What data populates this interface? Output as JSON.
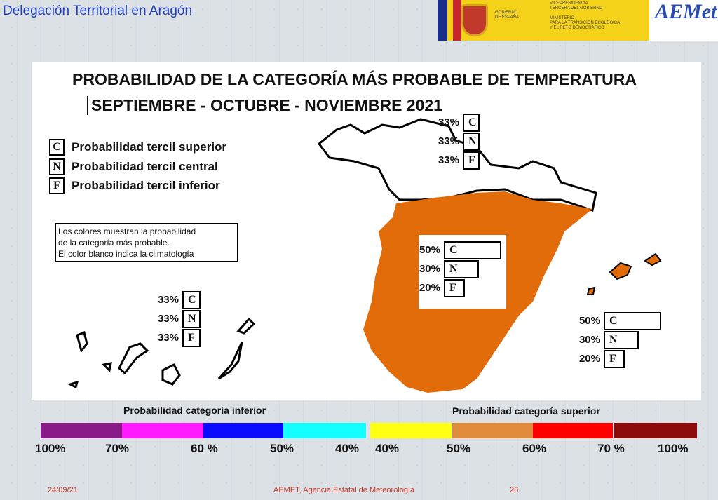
{
  "header": {
    "title": "Delegación Territorial en Aragón",
    "gov1": "GOBIERNO",
    "gov2": "DE ESPAÑA",
    "min1": "VICEPRESIDENCIA",
    "min2": "TERCERA DEL GOBIERNO",
    "min3": "MINISTERIO",
    "min4": "PARA LA TRANSICIÓN ECOLÓGICA",
    "min5": "Y EL RETO DEMOGRÁFICO",
    "logo": "AEMet"
  },
  "slide": {
    "title": "PROBABILIDAD DE LA CATEGORÍA MÁS PROBABLE DE TEMPERATURA",
    "subtitle": "SEPTIEMBRE - OCTUBRE - NOVIEMBRE 2021"
  },
  "legend": [
    {
      "key": "C",
      "label": "Probabilidad  tercil superior"
    },
    {
      "key": "N",
      "label": "Probabilidad  tercil central"
    },
    {
      "key": "F",
      "label": "Probabilidad  tercil inferior"
    }
  ],
  "note": [
    "Los colores muestran la probabilidad",
    "de la categoría más probable.",
    "El color blanco indica la climatología"
  ],
  "groups": {
    "north": [
      {
        "p": "33%",
        "k": "C",
        "v": 33
      },
      {
        "p": "33%",
        "k": "N",
        "v": 33
      },
      {
        "p": "33%",
        "k": "F",
        "v": 33
      }
    ],
    "peninsula": [
      {
        "p": "50%",
        "k": "C",
        "v": 50
      },
      {
        "p": "30%",
        "k": "N",
        "v": 30
      },
      {
        "p": "20%",
        "k": "F",
        "v": 20
      }
    ],
    "balearics": [
      {
        "p": "50%",
        "k": "C",
        "v": 50
      },
      {
        "p": "30%",
        "k": "N",
        "v": 30
      },
      {
        "p": "20%",
        "k": "F",
        "v": 20
      }
    ],
    "canarias": [
      {
        "p": "33%",
        "k": "C",
        "v": 33
      },
      {
        "p": "33%",
        "k": "N",
        "v": 33
      },
      {
        "p": "33%",
        "k": "F",
        "v": 33
      }
    ]
  },
  "scale": {
    "lower_caption": "Probabilidad categoría inferior",
    "upper_caption": "Probabilidad categoría superior",
    "lower_colors": [
      "#8b1a89",
      "#ff1aff",
      "#0a0aff",
      "#14ffff"
    ],
    "upper_colors": [
      "#ffff14",
      "#e08a3c",
      "#ff0000",
      "#8b0a0a"
    ],
    "lower_ticks": [
      "100%",
      "70%",
      "60 %",
      "50%",
      "40%"
    ],
    "upper_ticks": [
      "40%",
      "50%",
      "60%",
      "70 %",
      "100%"
    ]
  },
  "colors": {
    "peninsula": "#e36c0a"
  },
  "footer": {
    "date": "24/09/21",
    "org": "AEMET, Agencia Estatal de Meteorología",
    "page": "26"
  }
}
